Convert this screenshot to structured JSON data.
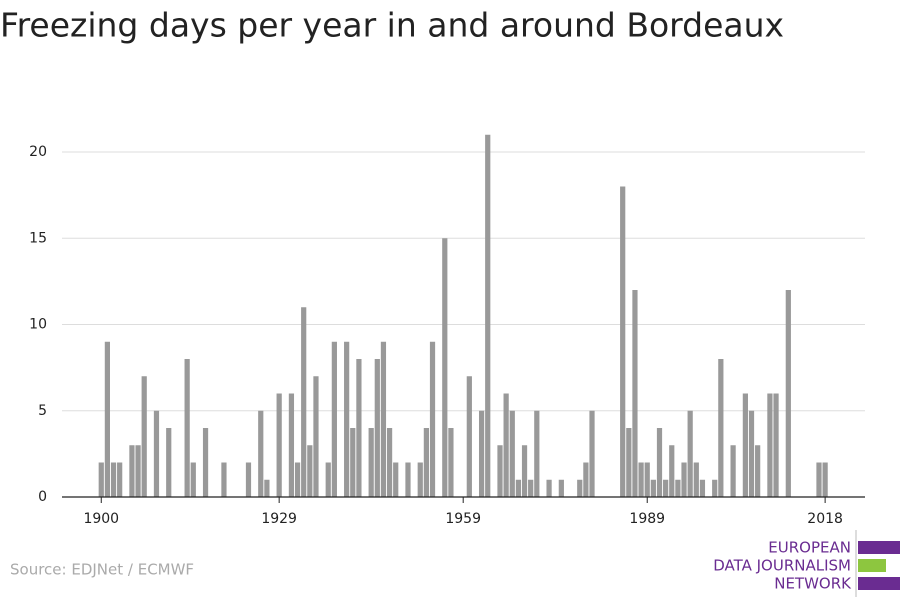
{
  "chart_data": {
    "type": "bar",
    "title": "Freezing days per year in and around Bordeaux",
    "source": "Source: EDJNet / ECMWF",
    "logo": [
      "EUROPEAN",
      "DATA JOURNALISM",
      "NETWORK"
    ],
    "color": "#999999",
    "x": [
      1900,
      1901,
      1902,
      1903,
      1904,
      1905,
      1906,
      1907,
      1908,
      1909,
      1910,
      1911,
      1912,
      1913,
      1914,
      1915,
      1916,
      1917,
      1918,
      1919,
      1920,
      1921,
      1922,
      1923,
      1924,
      1925,
      1926,
      1927,
      1928,
      1929,
      1930,
      1931,
      1932,
      1933,
      1934,
      1935,
      1936,
      1937,
      1938,
      1939,
      1940,
      1941,
      1942,
      1943,
      1944,
      1945,
      1946,
      1947,
      1948,
      1949,
      1950,
      1951,
      1952,
      1953,
      1954,
      1955,
      1956,
      1957,
      1958,
      1959,
      1960,
      1961,
      1962,
      1963,
      1964,
      1965,
      1966,
      1967,
      1968,
      1969,
      1970,
      1971,
      1972,
      1973,
      1974,
      1975,
      1976,
      1977,
      1978,
      1979,
      1980,
      1981,
      1982,
      1983,
      1984,
      1985,
      1986,
      1987,
      1988,
      1989,
      1990,
      1991,
      1992,
      1993,
      1994,
      1995,
      1996,
      1997,
      1998,
      1999,
      2000,
      2001,
      2002,
      2003,
      2004,
      2005,
      2006,
      2007,
      2008,
      2009,
      2010,
      2011,
      2012,
      2013,
      2014,
      2015,
      2016,
      2017,
      2018
    ],
    "values": [
      2,
      9,
      2,
      2,
      0,
      3,
      3,
      7,
      0,
      5,
      0,
      4,
      0,
      0,
      8,
      2,
      0,
      4,
      0,
      0,
      2,
      0,
      0,
      0,
      2,
      0,
      5,
      1,
      0,
      6,
      0,
      6,
      2,
      11,
      3,
      7,
      0,
      2,
      9,
      0,
      9,
      4,
      8,
      0,
      4,
      8,
      9,
      4,
      2,
      0,
      2,
      0,
      2,
      4,
      9,
      0,
      15,
      4,
      0,
      0,
      7,
      0,
      5,
      21,
      0,
      3,
      6,
      5,
      1,
      3,
      1,
      5,
      0,
      1,
      0,
      1,
      0,
      0,
      1,
      2,
      5,
      0,
      0,
      0,
      0,
      18,
      4,
      12,
      2,
      2,
      1,
      4,
      1,
      3,
      1,
      2,
      5,
      2,
      1,
      0,
      1,
      8,
      0,
      3,
      0,
      6,
      5,
      3,
      0,
      6,
      6,
      0,
      12,
      0,
      0,
      0,
      0,
      2,
      2
    ],
    "xlim": [
      1893.6,
      2024.5
    ],
    "xticks": [
      1900,
      1929,
      1959,
      1989,
      2018
    ],
    "ylim": [
      0,
      21
    ],
    "yticks": [
      0,
      5,
      10,
      15,
      20
    ],
    "grid": true
  }
}
